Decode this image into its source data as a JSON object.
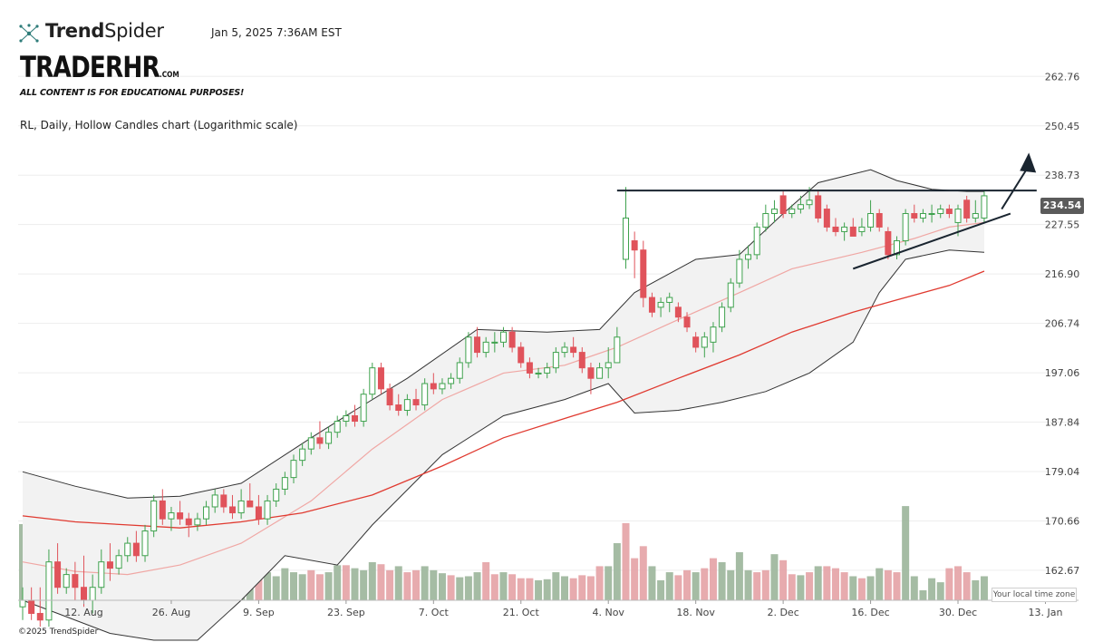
{
  "header": {
    "brand_bold": "Trend",
    "brand_light": "Spider",
    "timestamp": "Jan 5, 2025 7:36AM EST",
    "logo_main": "TRADERHR",
    "logo_suffix": ".COM",
    "disclaimer": "ALL CONTENT IS FOR EDUCATIONAL PURPOSES!",
    "subtitle": "RL, Daily, Hollow Candles chart (Logarithmic scale)"
  },
  "footer": {
    "copyright": "©2025 TrendSpider",
    "timezone_button": "Your local time zone"
  },
  "colors": {
    "up": "#3fa24e",
    "down": "#e0535b",
    "vol_up": "#9bb59a",
    "vol_down": "#e4a2a5",
    "band_fill": "#f2f2f2",
    "band_line": "#333333",
    "mid_band": "#f0a7a4",
    "sma_slow": "#e03a30",
    "trendline": "#1a2530",
    "price_tag": "#5b5b5b"
  },
  "chart_data": {
    "type": "candlestick",
    "ticker": "RL",
    "interval": "Daily",
    "style": "Hollow Candles",
    "scale": "log",
    "title": "RL, Daily, Hollow Candles chart (Logarithmic scale)",
    "last_price": "234.54",
    "y_ticks": [
      "262.76",
      "250.45",
      "238.73",
      "227.55",
      "216.90",
      "206.74",
      "197.06",
      "187.84",
      "179.04",
      "170.66",
      "162.67"
    ],
    "ylim": [
      158,
      272
    ],
    "x_labels": [
      "12. Aug",
      "26. Aug",
      "9. Sep",
      "23. Sep",
      "7. Oct",
      "21. Oct",
      "4. Nov",
      "18. Nov",
      "2. Dec",
      "16. Dec",
      "30. Dec",
      "13. Jan"
    ],
    "x_label_days": [
      7,
      17,
      27,
      37,
      47,
      57,
      67,
      77,
      87,
      97,
      107,
      117
    ],
    "candles": [
      [
        157.0,
        160.0,
        155.0,
        158.0
      ],
      [
        158.0,
        160.0,
        155.0,
        156.0
      ],
      [
        156.0,
        160.0,
        154.0,
        155.0
      ],
      [
        155.0,
        166.0,
        154.0,
        164.0
      ],
      [
        164.0,
        167.0,
        159.0,
        160.0
      ],
      [
        160.0,
        163.0,
        159.0,
        162.0
      ],
      [
        162.0,
        164.0,
        158.0,
        160.0
      ],
      [
        160.0,
        165.0,
        157.0,
        158.0
      ],
      [
        158.0,
        162.0,
        156.0,
        160.0
      ],
      [
        160.0,
        166.0,
        159.0,
        164.0
      ],
      [
        164.0,
        167.0,
        161.0,
        163.0
      ],
      [
        163.0,
        166.0,
        162.0,
        165.0
      ],
      [
        165.0,
        168.0,
        164.0,
        167.0
      ],
      [
        167.0,
        169.0,
        164.0,
        165.0
      ],
      [
        165.0,
        170.0,
        164.0,
        169.0
      ],
      [
        169.0,
        175.0,
        168.0,
        174.0
      ],
      [
        174.0,
        176.0,
        170.0,
        171.0
      ],
      [
        171.0,
        173.0,
        169.0,
        172.0
      ],
      [
        172.0,
        174.0,
        170.0,
        171.0
      ],
      [
        171.0,
        172.0,
        168.0,
        170.0
      ],
      [
        170.0,
        172.0,
        169.0,
        171.0
      ],
      [
        171.0,
        174.0,
        170.0,
        173.0
      ],
      [
        173.0,
        176.0,
        172.0,
        175.0
      ],
      [
        175.0,
        176.0,
        172.0,
        173.0
      ],
      [
        173.0,
        175.0,
        171.0,
        172.0
      ],
      [
        172.0,
        176.0,
        171.0,
        174.0
      ],
      [
        174.0,
        177.0,
        173.0,
        173.0
      ],
      [
        173.0,
        175.0,
        170.0,
        171.0
      ],
      [
        171.0,
        175.0,
        170.0,
        174.0
      ],
      [
        174.0,
        177.0,
        173.0,
        176.0
      ],
      [
        176.0,
        179.0,
        175.0,
        178.0
      ],
      [
        178.0,
        182.0,
        177.0,
        181.0
      ],
      [
        181.0,
        184.0,
        180.0,
        183.0
      ],
      [
        183.0,
        186.0,
        182.0,
        185.0
      ],
      [
        185.0,
        188.0,
        183.0,
        184.0
      ],
      [
        184.0,
        187.0,
        183.0,
        186.0
      ],
      [
        186.0,
        189.0,
        185.0,
        188.0
      ],
      [
        188.0,
        190.0,
        187.0,
        189.0
      ],
      [
        189.0,
        191.0,
        187.0,
        188.0
      ],
      [
        188.0,
        194.0,
        187.0,
        193.0
      ],
      [
        193.0,
        199.0,
        192.0,
        198.0
      ],
      [
        198.0,
        199.0,
        193.0,
        194.0
      ],
      [
        194.0,
        195.0,
        190.0,
        191.0
      ],
      [
        191.0,
        193.0,
        189.0,
        190.0
      ],
      [
        190.0,
        193.0,
        189.0,
        192.0
      ],
      [
        192.0,
        194.0,
        190.0,
        191.0
      ],
      [
        191.0,
        196.0,
        190.0,
        195.0
      ],
      [
        195.0,
        197.0,
        193.0,
        194.0
      ],
      [
        194.0,
        196.0,
        193.0,
        195.0
      ],
      [
        195.0,
        197.0,
        194.0,
        196.0
      ],
      [
        196.0,
        200.0,
        195.0,
        199.0
      ],
      [
        199.0,
        205.0,
        198.0,
        204.0
      ],
      [
        204.0,
        206.0,
        200.0,
        201.0
      ],
      [
        201.0,
        204.0,
        200.0,
        203.0
      ],
      [
        203.0,
        205.0,
        201.0,
        203.0
      ],
      [
        203.0,
        206.0,
        202.0,
        205.0
      ],
      [
        205.0,
        206.0,
        201.0,
        202.0
      ],
      [
        202.0,
        203.0,
        198.0,
        199.0
      ],
      [
        199.0,
        200.0,
        196.0,
        197.0
      ],
      [
        197.0,
        198.0,
        196.0,
        197.0
      ],
      [
        197.0,
        199.0,
        196.0,
        198.0
      ],
      [
        198.0,
        202.0,
        197.0,
        201.0
      ],
      [
        201.0,
        203.0,
        200.0,
        202.0
      ],
      [
        202.0,
        204.0,
        200.0,
        201.0
      ],
      [
        201.0,
        202.0,
        197.0,
        198.0
      ],
      [
        198.0,
        199.0,
        193.0,
        196.0
      ],
      [
        196.0,
        199.0,
        196.0,
        198.0
      ],
      [
        198.0,
        202.0,
        196.0,
        199.0
      ],
      [
        199.0,
        206.0,
        199.0,
        204.0
      ],
      [
        220.0,
        236.0,
        218.0,
        229.0
      ],
      [
        224.0,
        226.0,
        216.0,
        222.0
      ],
      [
        222.0,
        224.0,
        210.0,
        212.0
      ],
      [
        212.0,
        213.0,
        208.0,
        209.0
      ],
      [
        210.0,
        212.0,
        208.0,
        211.0
      ],
      [
        211.0,
        213.0,
        209.0,
        212.0
      ],
      [
        210.0,
        211.0,
        207.0,
        208.0
      ],
      [
        208.0,
        209.0,
        205.0,
        206.0
      ],
      [
        204.0,
        205.0,
        201.0,
        202.0
      ],
      [
        202.0,
        205.0,
        200.0,
        204.0
      ],
      [
        203.0,
        207.0,
        201.0,
        206.0
      ],
      [
        206.0,
        211.0,
        205.0,
        210.0
      ],
      [
        210.0,
        216.0,
        209.0,
        215.0
      ],
      [
        215.0,
        222.0,
        214.0,
        220.0
      ],
      [
        220.0,
        223.0,
        218.0,
        221.0
      ],
      [
        221.0,
        228.0,
        220.0,
        227.0
      ],
      [
        227.0,
        232.0,
        226.0,
        230.0
      ],
      [
        230.0,
        233.0,
        228.0,
        231.0
      ],
      [
        234.0,
        235.0,
        229.0,
        230.0
      ],
      [
        230.0,
        232.0,
        229.0,
        231.0
      ],
      [
        231.0,
        234.0,
        230.0,
        232.0
      ],
      [
        232.0,
        236.0,
        231.0,
        233.0
      ],
      [
        234.0,
        235.0,
        228.0,
        229.0
      ],
      [
        231.0,
        232.0,
        226.0,
        227.0
      ],
      [
        227.0,
        229.0,
        225.0,
        226.0
      ],
      [
        226.0,
        228.0,
        224.0,
        227.0
      ],
      [
        227.0,
        229.0,
        225.0,
        225.0
      ],
      [
        226.0,
        229.0,
        225.0,
        227.0
      ],
      [
        227.0,
        233.0,
        226.0,
        230.0
      ],
      [
        230.0,
        231.0,
        226.0,
        227.0
      ],
      [
        226.0,
        227.0,
        220.0,
        221.0
      ],
      [
        221.0,
        225.0,
        220.0,
        224.0
      ],
      [
        224.0,
        231.0,
        223.0,
        230.0
      ],
      [
        230.0,
        232.0,
        228.0,
        229.0
      ],
      [
        229.0,
        231.0,
        228.0,
        230.0
      ],
      [
        230.0,
        232.0,
        228.0,
        230.0
      ],
      [
        230.0,
        232.0,
        229.0,
        231.0
      ],
      [
        231.0,
        232.0,
        229.0,
        230.0
      ],
      [
        228.0,
        232.0,
        225.0,
        231.0
      ],
      [
        233.0,
        234.0,
        228.0,
        229.0
      ],
      [
        229.0,
        233.0,
        228.0,
        230.0
      ],
      [
        229.0,
        235.0,
        228.0,
        234.0
      ]
    ],
    "bollinger": {
      "upper": [
        [
          0,
          179.0
        ],
        [
          6,
          176.5
        ],
        [
          12,
          174.5
        ],
        [
          18,
          174.8
        ],
        [
          25,
          177.0
        ],
        [
          33,
          185.0
        ],
        [
          38,
          190.0
        ],
        [
          44,
          196.0
        ],
        [
          52,
          205.5
        ],
        [
          60,
          205.0
        ],
        [
          66,
          205.5
        ],
        [
          70,
          213.0
        ],
        [
          77,
          220.0
        ],
        [
          82,
          221.0
        ],
        [
          87,
          230.0
        ],
        [
          91,
          237.0
        ],
        [
          97,
          240.0
        ],
        [
          100,
          237.5
        ],
        [
          104,
          235.5
        ],
        [
          108,
          235.0
        ],
        [
          110,
          235.0
        ]
      ],
      "middle": [
        [
          0,
          164.0
        ],
        [
          6,
          162.5
        ],
        [
          12,
          162.0
        ],
        [
          18,
          163.5
        ],
        [
          25,
          167.0
        ],
        [
          33,
          174.0
        ],
        [
          40,
          183.0
        ],
        [
          48,
          192.0
        ],
        [
          55,
          197.0
        ],
        [
          62,
          198.5
        ],
        [
          68,
          202.0
        ],
        [
          75,
          207.5
        ],
        [
          82,
          213.0
        ],
        [
          88,
          218.0
        ],
        [
          96,
          221.5
        ],
        [
          102,
          224.5
        ],
        [
          106,
          227.0
        ],
        [
          110,
          228.0
        ]
      ],
      "lower": [
        [
          0,
          158.0
        ],
        [
          4,
          156.0
        ],
        [
          10,
          153.0
        ],
        [
          15,
          152.0
        ],
        [
          20,
          152.0
        ],
        [
          25,
          158.0
        ],
        [
          30,
          165.0
        ],
        [
          36,
          163.5
        ],
        [
          40,
          170.0
        ],
        [
          48,
          182.0
        ],
        [
          55,
          189.0
        ],
        [
          62,
          192.0
        ],
        [
          67,
          195.0
        ],
        [
          70,
          189.5
        ],
        [
          75,
          190.0
        ],
        [
          80,
          191.5
        ],
        [
          85,
          193.5
        ],
        [
          90,
          197.0
        ],
        [
          95,
          203.0
        ],
        [
          98,
          213.0
        ],
        [
          101,
          220.0
        ],
        [
          106,
          222.0
        ],
        [
          110,
          221.5
        ]
      ]
    },
    "sma_slow": [
      [
        0,
        171.5
      ],
      [
        6,
        170.5
      ],
      [
        12,
        170.0
      ],
      [
        18,
        169.5
      ],
      [
        25,
        170.5
      ],
      [
        32,
        172.0
      ],
      [
        40,
        175.0
      ],
      [
        48,
        180.0
      ],
      [
        55,
        185.0
      ],
      [
        62,
        188.5
      ],
      [
        68,
        191.5
      ],
      [
        75,
        196.0
      ],
      [
        82,
        200.5
      ],
      [
        88,
        205.0
      ],
      [
        95,
        209.0
      ],
      [
        100,
        211.5
      ],
      [
        106,
        214.5
      ],
      [
        110,
        217.5
      ]
    ],
    "volume": [
      [
        76,
        1
      ],
      [
        70,
        1
      ],
      [
        68,
        0
      ],
      [
        60,
        1
      ],
      [
        54,
        0
      ],
      [
        44,
        1
      ],
      [
        38,
        1
      ],
      [
        42,
        0
      ],
      [
        38,
        1
      ],
      [
        36,
        0
      ],
      [
        34,
        1
      ],
      [
        40,
        1
      ],
      [
        38,
        0
      ],
      [
        34,
        1
      ],
      [
        35,
        0
      ],
      [
        32,
        1
      ],
      [
        26,
        1
      ],
      [
        26,
        0
      ],
      [
        24,
        1
      ],
      [
        22,
        0
      ],
      [
        24,
        1
      ],
      [
        30,
        1
      ],
      [
        24,
        0
      ],
      [
        26,
        1
      ],
      [
        24,
        0
      ],
      [
        30,
        1
      ],
      [
        34,
        1
      ],
      [
        34,
        0
      ],
      [
        28,
        1
      ],
      [
        24,
        1
      ],
      [
        32,
        1
      ],
      [
        28,
        1
      ],
      [
        26,
        1
      ],
      [
        30,
        0
      ],
      [
        26,
        0
      ],
      [
        28,
        1
      ],
      [
        35,
        1
      ],
      [
        35,
        0
      ],
      [
        32,
        1
      ],
      [
        30,
        1
      ],
      [
        38,
        1
      ],
      [
        36,
        0
      ],
      [
        30,
        0
      ],
      [
        34,
        1
      ],
      [
        28,
        0
      ],
      [
        30,
        0
      ],
      [
        34,
        1
      ],
      [
        30,
        1
      ],
      [
        27,
        1
      ],
      [
        25,
        0
      ],
      [
        23,
        1
      ],
      [
        24,
        1
      ],
      [
        28,
        1
      ],
      [
        38,
        0
      ],
      [
        26,
        0
      ],
      [
        28,
        1
      ],
      [
        26,
        0
      ],
      [
        22,
        0
      ],
      [
        22,
        0
      ],
      [
        20,
        1
      ],
      [
        21,
        1
      ],
      [
        28,
        1
      ],
      [
        24,
        1
      ],
      [
        22,
        0
      ],
      [
        25,
        0
      ],
      [
        24,
        0
      ],
      [
        34,
        0
      ],
      [
        34,
        1
      ],
      [
        57,
        1
      ],
      [
        77,
        0
      ],
      [
        42,
        0
      ],
      [
        54,
        0
      ],
      [
        34,
        1
      ],
      [
        20,
        1
      ],
      [
        28,
        1
      ],
      [
        25,
        0
      ],
      [
        30,
        0
      ],
      [
        28,
        1
      ],
      [
        32,
        0
      ],
      [
        42,
        0
      ],
      [
        38,
        1
      ],
      [
        30,
        1
      ],
      [
        48,
        1
      ],
      [
        30,
        1
      ],
      [
        28,
        0
      ],
      [
        30,
        0
      ],
      [
        46,
        1
      ],
      [
        40,
        0
      ],
      [
        26,
        0
      ],
      [
        25,
        1
      ],
      [
        28,
        0
      ],
      [
        34,
        1
      ],
      [
        34,
        0
      ],
      [
        32,
        0
      ],
      [
        28,
        0
      ],
      [
        24,
        1
      ],
      [
        22,
        0
      ],
      [
        24,
        1
      ],
      [
        32,
        1
      ],
      [
        30,
        0
      ],
      [
        28,
        0
      ],
      [
        94,
        1
      ],
      [
        24,
        1
      ],
      [
        10,
        1
      ],
      [
        22,
        1
      ],
      [
        18,
        1
      ],
      [
        32,
        0
      ],
      [
        34,
        0
      ],
      [
        28,
        0
      ],
      [
        20,
        1
      ],
      [
        24,
        1
      ]
    ],
    "annotations": {
      "resistance": 235.2,
      "rising_trendline": [
        [
          95,
          218.0
        ],
        [
          113,
          230.0
        ]
      ],
      "arrow": [
        [
          112,
          231.0
        ],
        [
          115,
          244.0
        ]
      ]
    }
  }
}
